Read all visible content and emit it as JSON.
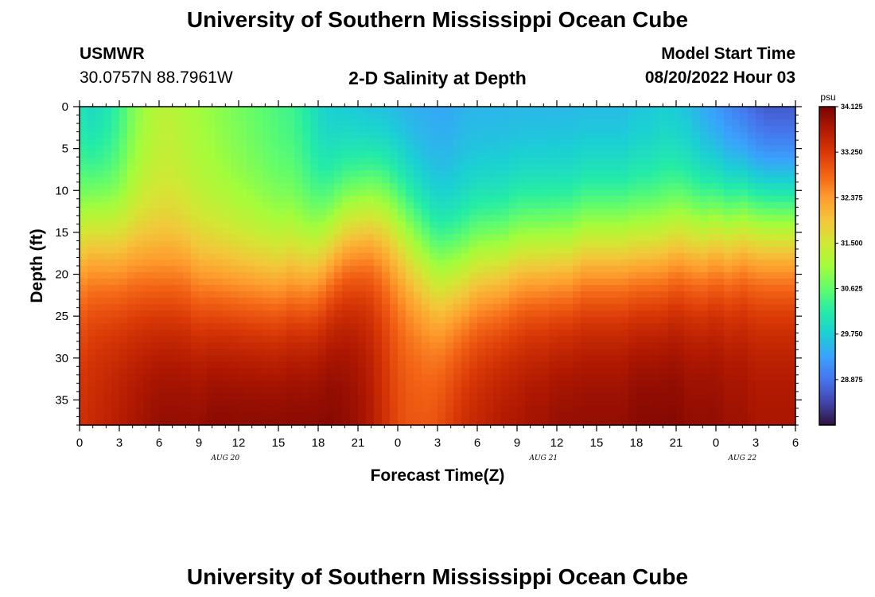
{
  "header": {
    "title": "University of Southern Mississippi Ocean Cube",
    "station": "USMWR",
    "coords": "30.0757N  88.7961W",
    "subtitle": "2-D Salinity at Depth",
    "model_start_label": "Model Start Time",
    "model_start_value": "08/20/2022 Hour 03"
  },
  "footer": {
    "title": "University of Southern Mississippi Ocean Cube"
  },
  "chart_data": {
    "type": "heatmap",
    "xlabel": "Forecast Time(Z)",
    "ylabel": "Depth (ft)",
    "x_ticks": [
      "0",
      "3",
      "6",
      "9",
      "12",
      "15",
      "18",
      "21",
      "0",
      "3",
      "6",
      "9",
      "12",
      "15",
      "18",
      "21",
      "0",
      "3",
      "6"
    ],
    "x_range_hours": [
      0,
      54
    ],
    "date_labels": [
      {
        "label": "AUG 20",
        "hour": 11
      },
      {
        "label": "AUG 21",
        "hour": 35
      },
      {
        "label": "AUG 22",
        "hour": 50
      }
    ],
    "y_ticks": [
      0,
      5,
      10,
      15,
      20,
      25,
      30,
      35
    ],
    "ylim": [
      0,
      38
    ],
    "colorbar": {
      "unit": "psu",
      "min": 28.0,
      "max": 34.125,
      "tick_labels": [
        "34.125",
        "33.250",
        "32.375",
        "31.500",
        "30.625",
        "29.750",
        "28.875"
      ],
      "tick_values": [
        34.125,
        33.25,
        32.375,
        31.5,
        30.625,
        29.75,
        28.875
      ],
      "colors": [
        "#30123b",
        "#4145ab",
        "#4675ed",
        "#39a2fc",
        "#1bcfd4",
        "#24eca6",
        "#61fc6c",
        "#a4fc3b",
        "#d1e834",
        "#f3c63a",
        "#fe9b2d",
        "#f36315",
        "#d93806",
        "#b11901",
        "#7a0403"
      ]
    },
    "surface_salinity": [
      29.9,
      29.7,
      29.9,
      30.2,
      30.7,
      31.0,
      31.2,
      31.2,
      31.1,
      31.0,
      30.9,
      30.8,
      30.7,
      30.6,
      30.5,
      30.4,
      30.3,
      30.1,
      29.8,
      29.6,
      29.5,
      29.4,
      29.3,
      29.3,
      29.3,
      29.3,
      29.3,
      29.3,
      29.3,
      29.4,
      29.4,
      29.4,
      29.4,
      29.4,
      29.4,
      29.4,
      29.4,
      29.4,
      29.4,
      29.4,
      29.4,
      29.4,
      29.5,
      29.5,
      29.6,
      29.5,
      29.4,
      29.2,
      29.0,
      28.8,
      28.6,
      28.4,
      28.3,
      28.3,
      28.3
    ],
    "halocline_depth_ft": [
      12,
      11,
      12,
      13,
      14,
      15,
      16,
      16,
      16,
      17,
      17,
      17,
      17,
      17,
      17,
      17,
      16,
      16,
      15,
      13,
      11,
      10,
      9,
      9,
      10,
      12,
      14,
      16,
      16,
      16,
      15,
      15,
      15,
      14,
      14,
      14,
      14,
      14,
      13,
      13,
      13,
      13,
      13,
      13,
      13,
      12,
      12,
      12,
      11,
      11,
      10,
      10,
      10,
      10,
      10
    ],
    "bottom_salinity": [
      33.4,
      33.5,
      33.6,
      33.7,
      33.8,
      33.9,
      34.0,
      34.0,
      34.0,
      34.0,
      34.1,
      34.1,
      34.1,
      34.1,
      34.1,
      34.1,
      34.1,
      34.1,
      34.1,
      34.1,
      34.0,
      33.9,
      33.7,
      33.4,
      33.1,
      33.0,
      33.0,
      33.1,
      33.3,
      33.5,
      33.6,
      33.7,
      33.8,
      33.8,
      33.9,
      33.9,
      34.0,
      34.0,
      34.0,
      34.0,
      34.0,
      34.0,
      34.1,
      34.1,
      34.1,
      34.1,
      34.0,
      34.0,
      34.0,
      33.9,
      33.9,
      33.8,
      33.8,
      33.8,
      33.8
    ]
  }
}
